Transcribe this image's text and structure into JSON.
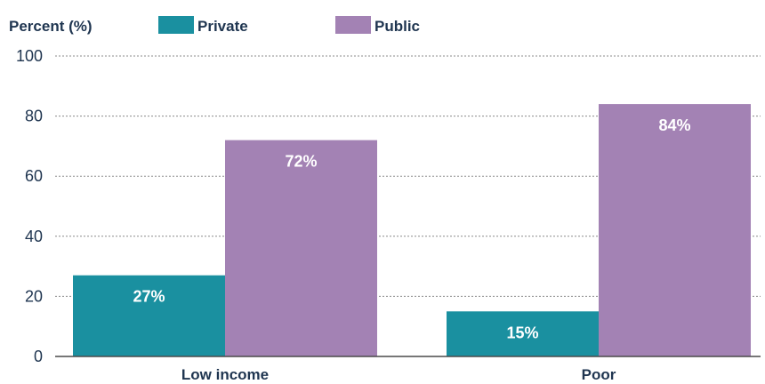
{
  "chart_data": {
    "type": "bar",
    "ylabel": "Percent (%)",
    "xlabel": "",
    "categories": [
      "Low income",
      "Poor"
    ],
    "series": [
      {
        "name": "Private",
        "values": [
          27,
          15
        ],
        "labels": [
          "27%",
          "15%"
        ],
        "color": "#1a90a0"
      },
      {
        "name": "Public",
        "values": [
          72,
          84
        ],
        "labels": [
          "72%",
          "84%"
        ],
        "color": "#a382b4"
      }
    ],
    "ylim": [
      0,
      100
    ],
    "yticks": [
      0,
      20,
      40,
      60,
      80,
      100
    ],
    "grid": true,
    "legend": "top"
  }
}
